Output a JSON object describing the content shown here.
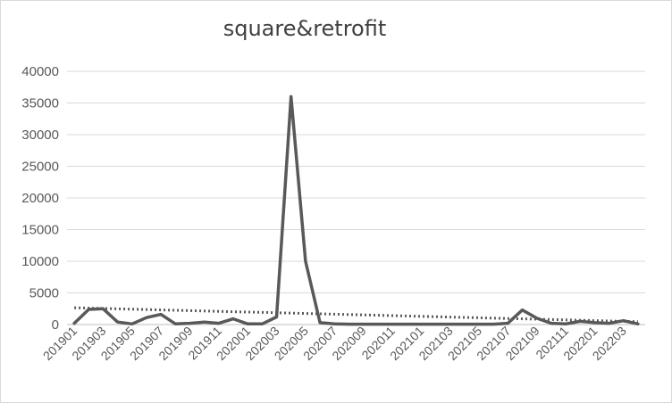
{
  "chart_data": {
    "type": "line",
    "title": "square&retrofit",
    "xlabel": "",
    "ylabel": "",
    "ylim": [
      0,
      40000
    ],
    "y_ticks": [
      "0",
      "5000",
      "10000",
      "15000",
      "20000",
      "25000",
      "30000",
      "35000",
      "40000"
    ],
    "x": [
      "201901",
      "201902",
      "201903",
      "201904",
      "201905",
      "201906",
      "201907",
      "201908",
      "201909",
      "201910",
      "201911",
      "201912",
      "202001",
      "202002",
      "202003",
      "202004",
      "202005",
      "202006",
      "202007",
      "202008",
      "202009",
      "202010",
      "202011",
      "202012",
      "202101",
      "202102",
      "202103",
      "202104",
      "202105",
      "202106",
      "202107",
      "202108",
      "202109",
      "202110",
      "202111",
      "202112",
      "202201",
      "202202",
      "202203",
      "202204"
    ],
    "x_tick_labels": [
      "201901",
      "201903",
      "201905",
      "201907",
      "201909",
      "201911",
      "202001",
      "202003",
      "202005",
      "202007",
      "202009",
      "202011",
      "202101",
      "202103",
      "202105",
      "202107",
      "202109",
      "202111",
      "202201",
      "202203"
    ],
    "series": [
      {
        "values": [
          200,
          2400,
          2500,
          400,
          100,
          1100,
          1600,
          100,
          200,
          400,
          200,
          900,
          100,
          100,
          1200,
          36000,
          10000,
          300,
          100,
          50,
          50,
          50,
          50,
          50,
          50,
          50,
          50,
          50,
          50,
          50,
          200,
          2300,
          1000,
          200,
          100,
          500,
          300,
          200,
          600,
          100
        ],
        "color": "#595959",
        "style": "solid"
      }
    ],
    "trendline": {
      "type": "linear",
      "style": "dotted",
      "color": "#595959",
      "start": 2650,
      "end": 450
    },
    "grid": true,
    "legend": "none"
  }
}
